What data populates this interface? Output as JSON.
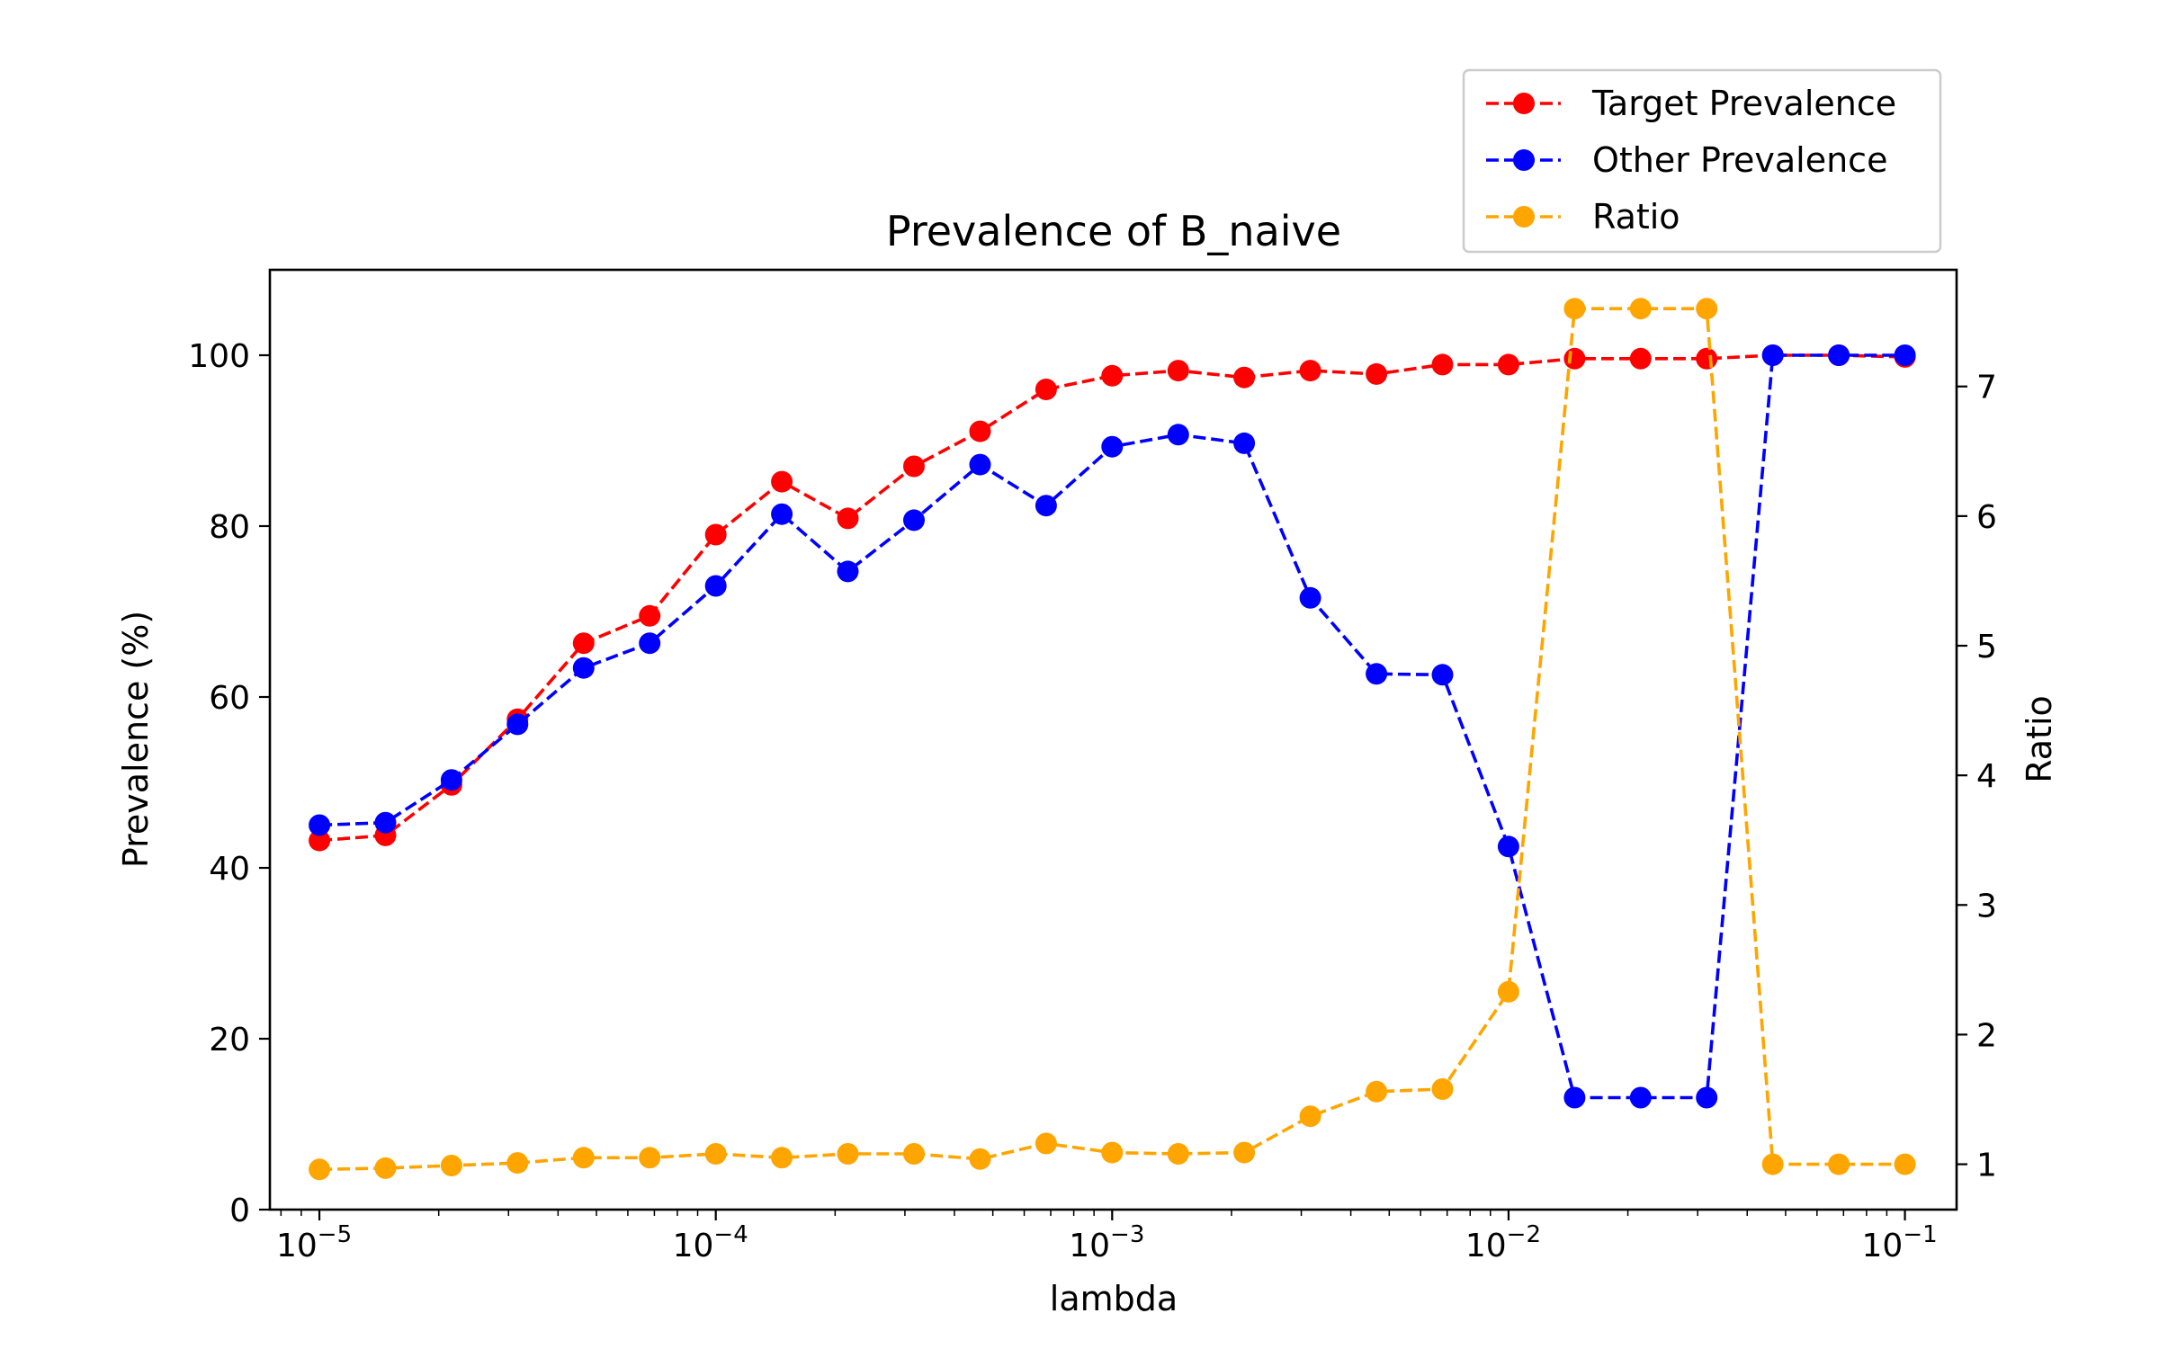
{
  "chart_data": {
    "type": "line",
    "title": "Prevalence of B_naive",
    "xlabel": "lambda",
    "ylabel": "Prevalence (%)",
    "y2label": "Ratio",
    "xscale": "log",
    "xlim": [
      7.5e-06,
      0.135
    ],
    "ylim": [
      0,
      110
    ],
    "y2lim": [
      0.65,
      7.9
    ],
    "grid": false,
    "legend_position": "top-right, outside plot",
    "x": [
      1e-05,
      1.468e-05,
      2.154e-05,
      3.162e-05,
      4.642e-05,
      6.813e-05,
      0.0001,
      0.0001468,
      0.0002154,
      0.0003162,
      0.0004642,
      0.0006813,
      0.001,
      0.001468,
      0.002154,
      0.003162,
      0.004642,
      0.006813,
      0.01,
      0.01468,
      0.02154,
      0.03162,
      0.04642,
      0.06813,
      0.1
    ],
    "x_ticks": [
      {
        "value": 1e-05,
        "base": "10",
        "exp": "−5"
      },
      {
        "value": 0.0001,
        "base": "10",
        "exp": "−4"
      },
      {
        "value": 0.001,
        "base": "10",
        "exp": "−3"
      },
      {
        "value": 0.01,
        "base": "10",
        "exp": "−2"
      },
      {
        "value": 0.1,
        "base": "10",
        "exp": "−1"
      }
    ],
    "y_ticks": [
      0,
      20,
      40,
      60,
      80,
      100
    ],
    "y2_ticks": [
      1,
      2,
      3,
      4,
      5,
      6,
      7
    ],
    "series": [
      {
        "name": "Target Prevalence",
        "color": "#ff0000",
        "axis": "left",
        "values": [
          43.2,
          43.8,
          49.7,
          57.4,
          66.3,
          69.5,
          79.0,
          85.2,
          80.9,
          87.0,
          91.1,
          96.0,
          97.6,
          98.2,
          97.4,
          98.2,
          97.8,
          98.9,
          98.9,
          99.6,
          99.6,
          99.6,
          100.0,
          100.0,
          99.8
        ]
      },
      {
        "name": "Other Prevalence",
        "color": "#0000ff",
        "axis": "left",
        "values": [
          45.0,
          45.3,
          50.3,
          56.8,
          63.4,
          66.3,
          73.0,
          81.4,
          74.7,
          80.7,
          87.2,
          82.4,
          89.3,
          90.7,
          89.7,
          71.6,
          62.7,
          62.6,
          42.5,
          13.1,
          13.1,
          13.1,
          100.0,
          100.0,
          100.0
        ]
      },
      {
        "name": "Ratio",
        "color": "#ffa500",
        "axis": "right",
        "values": [
          0.96,
          0.97,
          0.99,
          1.01,
          1.05,
          1.05,
          1.08,
          1.05,
          1.08,
          1.08,
          1.04,
          1.16,
          1.09,
          1.08,
          1.09,
          1.37,
          1.56,
          1.58,
          2.33,
          7.6,
          7.6,
          7.6,
          1.0,
          1.0,
          1.0
        ]
      }
    ]
  }
}
